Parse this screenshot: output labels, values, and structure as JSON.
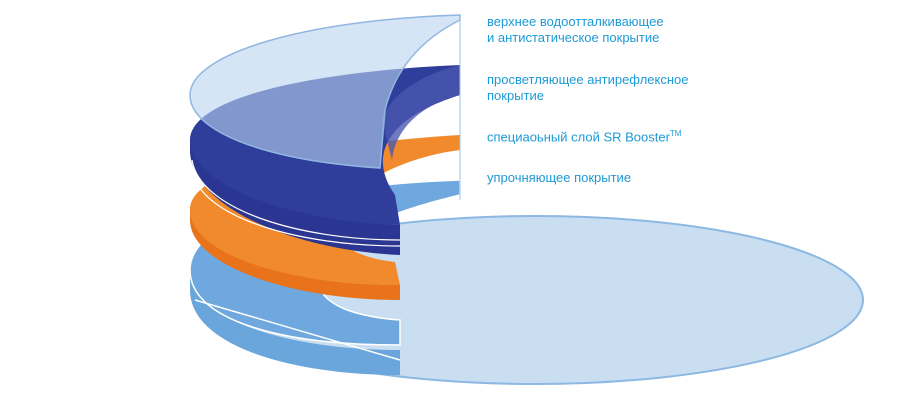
{
  "layers": [
    {
      "lines": [
        "верхнее водоотталкивающее",
        "и антистатическое покрытие"
      ]
    },
    {
      "lines": [
        "просветляющее антирефлексное",
        "покрытие"
      ]
    },
    {
      "lines": [
        "специаоьный слой SR Booster"
      ],
      "superscript": "TM"
    },
    {
      "lines": [
        "упрочняющее покрытие"
      ]
    }
  ]
}
